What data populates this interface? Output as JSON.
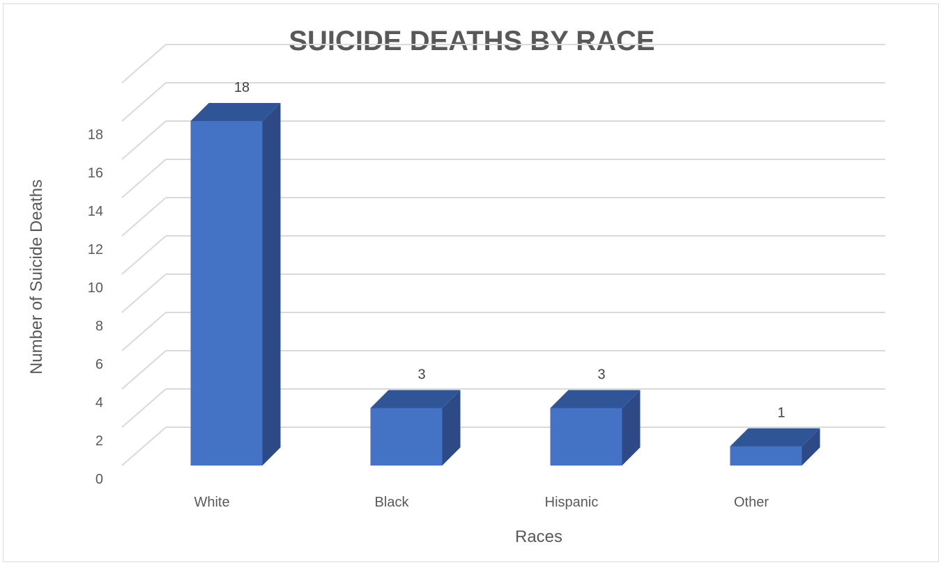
{
  "chart_data": {
    "type": "bar",
    "title": "SUICIDE DEATHS BY RACE",
    "xlabel": "Races",
    "ylabel": "Number of Suicide Deaths",
    "categories": [
      "White",
      "Black",
      "Hispanic",
      "Other"
    ],
    "values": [
      18,
      3,
      3,
      1
    ],
    "data_labels": [
      "18",
      "3",
      "3",
      "1"
    ],
    "ylim": [
      0,
      18
    ],
    "yticks": [
      0,
      2,
      4,
      6,
      8,
      10,
      12,
      14,
      16,
      18
    ],
    "ytick_labels": [
      "0",
      "2",
      "4",
      "6",
      "8",
      "10",
      "12",
      "14",
      "16",
      "18"
    ],
    "grid": true,
    "legend": "none",
    "style": "3d-column",
    "colors": {
      "front": "#4472C4",
      "top": "#2F5597",
      "side": "#2E4A86",
      "grid": "#D9D9D9",
      "text": "#595959"
    }
  }
}
